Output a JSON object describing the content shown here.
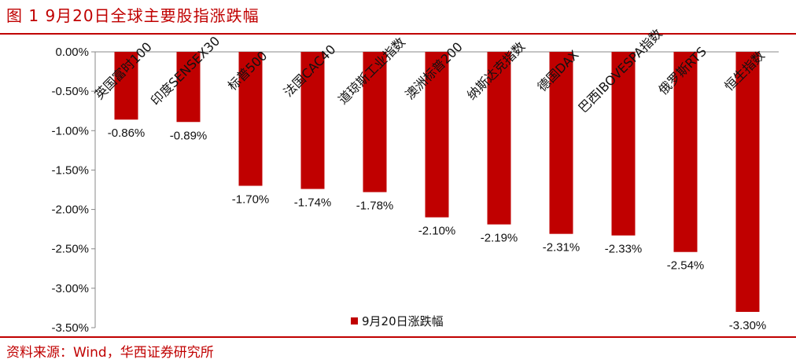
{
  "title": "图 1 9月20日全球主要股指涨跌幅",
  "source": "资料来源：Wind，华西证券研究所",
  "colors": {
    "bar": "#c00000",
    "accent": "#c00000"
  },
  "chart_data": {
    "type": "bar",
    "categories": [
      "英国富时100",
      "印度SENSEX30",
      "标普500",
      "法国CAC40",
      "道琼斯工业指数",
      "澳洲标普200",
      "纳斯达克指数",
      "德国DAX",
      "巴西IBOVESPA指数",
      "俄罗斯RTS",
      "恒生指数"
    ],
    "series": [
      {
        "name": "9月20日涨跌幅",
        "values": [
          -0.86,
          -0.89,
          -1.7,
          -1.74,
          -1.78,
          -2.1,
          -2.19,
          -2.31,
          -2.33,
          -2.54,
          -3.3
        ]
      }
    ],
    "data_labels": [
      "-0.86%",
      "-0.89%",
      "-1.70%",
      "-1.74%",
      "-1.78%",
      "-2.10%",
      "-2.19%",
      "-2.31%",
      "-2.33%",
      "-2.54%",
      "-3.30%"
    ],
    "yticks": [
      "0.00%",
      "-0.50%",
      "-1.00%",
      "-1.50%",
      "-2.00%",
      "-2.50%",
      "-3.00%",
      "-3.50%"
    ],
    "ytick_values": [
      0,
      -0.5,
      -1.0,
      -1.5,
      -2.0,
      -2.5,
      -3.0,
      -3.5
    ],
    "ylim": [
      -3.5,
      0
    ],
    "legend_position": "bottom-center",
    "grid": false
  }
}
